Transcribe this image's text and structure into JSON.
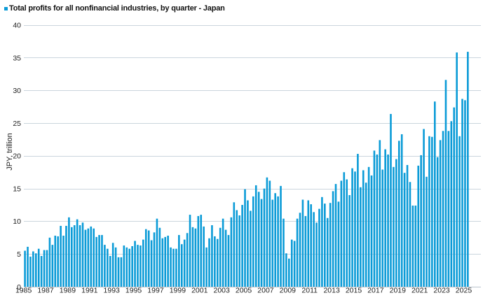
{
  "chart_data": {
    "type": "bar",
    "title": "Total profits for all nonfinancial industries, by quarter - Japan",
    "xlabel": "",
    "ylabel": "JPY, trillion",
    "ylim": [
      0,
      40
    ],
    "yticks": [
      0,
      5,
      10,
      15,
      20,
      25,
      30,
      35,
      40
    ],
    "xticks": [
      "1985",
      "1987",
      "1989",
      "1991",
      "1993",
      "1995",
      "1997",
      "1999",
      "2001",
      "2003",
      "2005",
      "2007",
      "2009",
      "2011",
      "2013",
      "2015",
      "2017",
      "2019",
      "2021",
      "2023",
      "2025"
    ],
    "grid": true,
    "legend_position": "top-left",
    "colors": {
      "bar": "#0b9bd7",
      "gridline": "#cbd5dd",
      "axis": "#b9c4cc",
      "text": "#222222"
    },
    "series": [
      {
        "name": "Total profits for all nonfinancial industries",
        "color": "#0b9bd7"
      }
    ],
    "categories": [
      "1985 Q1",
      "1985 Q2",
      "1985 Q3",
      "1985 Q4",
      "1986 Q1",
      "1986 Q2",
      "1986 Q3",
      "1986 Q4",
      "1987 Q1",
      "1987 Q2",
      "1987 Q3",
      "1987 Q4",
      "1988 Q1",
      "1988 Q2",
      "1988 Q3",
      "1988 Q4",
      "1989 Q1",
      "1989 Q2",
      "1989 Q3",
      "1989 Q4",
      "1990 Q1",
      "1990 Q2",
      "1990 Q3",
      "1990 Q4",
      "1991 Q1",
      "1991 Q2",
      "1991 Q3",
      "1991 Q4",
      "1992 Q1",
      "1992 Q2",
      "1992 Q3",
      "1992 Q4",
      "1993 Q1",
      "1993 Q2",
      "1993 Q3",
      "1993 Q4",
      "1994 Q1",
      "1994 Q2",
      "1994 Q3",
      "1994 Q4",
      "1995 Q1",
      "1995 Q2",
      "1995 Q3",
      "1995 Q4",
      "1996 Q1",
      "1996 Q2",
      "1996 Q3",
      "1996 Q4",
      "1997 Q1",
      "1997 Q2",
      "1997 Q3",
      "1997 Q4",
      "1998 Q1",
      "1998 Q2",
      "1998 Q3",
      "1998 Q4",
      "1999 Q1",
      "1999 Q2",
      "1999 Q3",
      "1999 Q4",
      "2000 Q1",
      "2000 Q2",
      "2000 Q3",
      "2000 Q4",
      "2001 Q1",
      "2001 Q2",
      "2001 Q3",
      "2001 Q4",
      "2002 Q1",
      "2002 Q2",
      "2002 Q3",
      "2002 Q4",
      "2003 Q1",
      "2003 Q2",
      "2003 Q3",
      "2003 Q4",
      "2004 Q1",
      "2004 Q2",
      "2004 Q3",
      "2004 Q4",
      "2005 Q1",
      "2005 Q2",
      "2005 Q3",
      "2005 Q4",
      "2006 Q1",
      "2006 Q2",
      "2006 Q3",
      "2006 Q4",
      "2007 Q1",
      "2007 Q2",
      "2007 Q3",
      "2007 Q4",
      "2008 Q1",
      "2008 Q2",
      "2008 Q3",
      "2008 Q4",
      "2009 Q1",
      "2009 Q2",
      "2009 Q3",
      "2009 Q4",
      "2010 Q1",
      "2010 Q2",
      "2010 Q3",
      "2010 Q4",
      "2011 Q1",
      "2011 Q2",
      "2011 Q3",
      "2011 Q4",
      "2012 Q1",
      "2012 Q2",
      "2012 Q3",
      "2012 Q4",
      "2013 Q1",
      "2013 Q2",
      "2013 Q3",
      "2013 Q4",
      "2014 Q1",
      "2014 Q2",
      "2014 Q3",
      "2014 Q4",
      "2015 Q1",
      "2015 Q2",
      "2015 Q3",
      "2015 Q4",
      "2016 Q1",
      "2016 Q2",
      "2016 Q3",
      "2016 Q4",
      "2017 Q1",
      "2017 Q2",
      "2017 Q3",
      "2017 Q4",
      "2018 Q1",
      "2018 Q2",
      "2018 Q3",
      "2018 Q4",
      "2019 Q1",
      "2019 Q2",
      "2019 Q3",
      "2019 Q4",
      "2020 Q1",
      "2020 Q2",
      "2020 Q3",
      "2020 Q4",
      "2021 Q1",
      "2021 Q2",
      "2021 Q3",
      "2021 Q4",
      "2022 Q1",
      "2022 Q2",
      "2022 Q3",
      "2022 Q4",
      "2023 Q1",
      "2023 Q2",
      "2023 Q3",
      "2023 Q4",
      "2024 Q1",
      "2024 Q2",
      "2024 Q3",
      "2024 Q4",
      "2025 Q1",
      "2025 Q2"
    ],
    "values": [
      5.5,
      6.1,
      4.6,
      5.4,
      5.1,
      5.8,
      4.7,
      5.6,
      5.6,
      7.5,
      6.4,
      7.8,
      7.7,
      9.3,
      7.8,
      9.3,
      10.6,
      9.1,
      9.4,
      10.3,
      9.4,
      9.8,
      8.7,
      8.9,
      9.2,
      8.9,
      7.6,
      7.9,
      7.9,
      6.4,
      5.8,
      4.7,
      6.7,
      6.0,
      4.5,
      4.5,
      6.3,
      6.0,
      5.8,
      6.2,
      7.0,
      6.4,
      6.3,
      7.2,
      8.8,
      8.6,
      7.1,
      8.3,
      10.4,
      9.0,
      7.4,
      7.6,
      7.8,
      6.0,
      5.8,
      5.8,
      7.9,
      6.5,
      7.2,
      8.2,
      11.0,
      9.1,
      8.9,
      10.8,
      11.0,
      9.2,
      6.0,
      7.4,
      9.4,
      7.7,
      7.3,
      9.0,
      10.4,
      8.7,
      7.9,
      10.6,
      12.9,
      11.7,
      10.9,
      12.5,
      14.9,
      13.2,
      11.6,
      13.8,
      15.5,
      14.5,
      13.4,
      15.0,
      16.7,
      16.2,
      13.3,
      14.3,
      13.8,
      15.4,
      10.4,
      5.1,
      4.3,
      7.2,
      7.0,
      10.4,
      11.3,
      13.3,
      10.8,
      13.2,
      12.6,
      11.4,
      9.8,
      11.9,
      13.7,
      12.7,
      10.5,
      12.8,
      14.6,
      15.7,
      13.0,
      16.2,
      17.5,
      16.4,
      14.0,
      18.1,
      17.6,
      20.3,
      15.2,
      17.8,
      15.9,
      18.3,
      17.0,
      20.8,
      20.2,
      22.4,
      17.9,
      21.0,
      20.2,
      26.4,
      18.3,
      19.5,
      22.3,
      23.3,
      17.4,
      18.6,
      16.0,
      12.4,
      12.4,
      18.5,
      20.1,
      24.1,
      16.8,
      23.0,
      22.9,
      28.3,
      19.8,
      22.4,
      23.8,
      31.6,
      23.8,
      25.3,
      27.4,
      35.8,
      23.0,
      28.7,
      28.5,
      35.9
    ]
  }
}
